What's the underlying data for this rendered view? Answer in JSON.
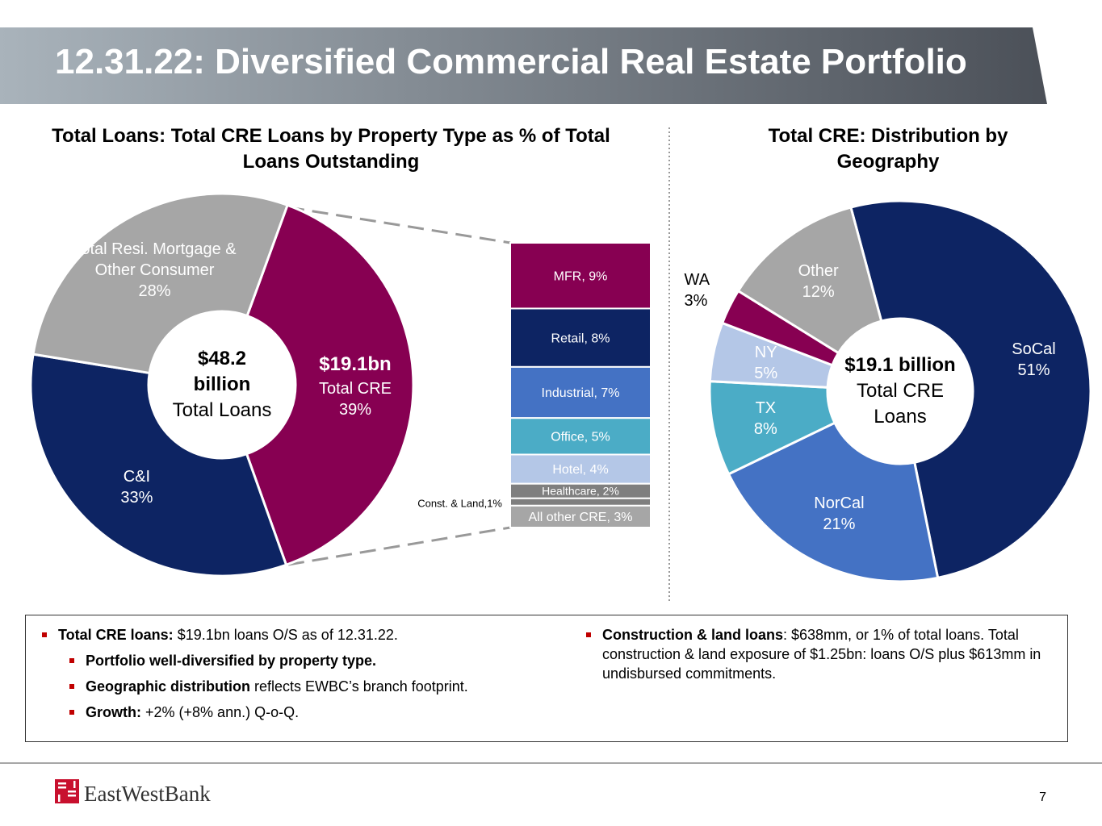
{
  "header": {
    "title": "12.31.22: Diversified Commercial Real Estate Portfolio"
  },
  "chart_data": [
    {
      "type": "donut",
      "title": "Total Loans: Total CRE Loans by Property Type as % of Total Loans Outstanding",
      "center_label": {
        "amount": "$48.2 billion",
        "caption": "Total Loans"
      },
      "categories": [
        "Total CRE",
        "C&I",
        "Total Resi. Mortgage & Other Consumer"
      ],
      "values": [
        39,
        33,
        28
      ],
      "value_labels": [
        "39%",
        "33%",
        "28%"
      ],
      "callouts": [
        "$19.1bn",
        null,
        null
      ],
      "colors": [
        "#870052",
        "#0d2463",
        "#a6a6a6"
      ]
    },
    {
      "type": "stacked-bar",
      "values": [
        9,
        8,
        7,
        5,
        4,
        2,
        1,
        3
      ],
      "value_labels": [
        "MFR, 9%",
        "Retail, 8%",
        "Industrial, 7%",
        "Office, 5%",
        "Hotel, 4%",
        "Healthcare, 2%",
        "Const. & Land,1%",
        "All other CRE, 3%"
      ],
      "colors": [
        "#870052",
        "#0d2463",
        "#4472c4",
        "#4bacc6",
        "#b4c7e7",
        "#7f7f7f",
        "#7f7f7f",
        "#a6a6a6"
      ]
    },
    {
      "type": "donut",
      "title": "Total CRE: Distribution by Geography",
      "center_label": {
        "amount": "$19.1 billion",
        "caption": "Total CRE Loans"
      },
      "categories": [
        "SoCal",
        "NorCal",
        "TX",
        "NY",
        "WA",
        "Other"
      ],
      "values": [
        51,
        21,
        8,
        5,
        3,
        12
      ],
      "value_labels": [
        "51%",
        "21%",
        "8%",
        "5%",
        "3%",
        "12%"
      ],
      "colors": [
        "#0d2463",
        "#4472c4",
        "#4bacc6",
        "#b4c7e7",
        "#870052",
        "#a6a6a6"
      ]
    }
  ],
  "bullets": {
    "left": [
      {
        "bold": "Total CRE loans:",
        "text": " $19.1bn loans O/S as of 12.31.22."
      },
      {
        "bold": "Portfolio well-diversified by property type."
      },
      {
        "bold": "Geographic distribution",
        "text": " reflects EWBC’s branch footprint."
      },
      {
        "bold": "Growth:",
        "text": " +2% (+8% ann.) Q-o-Q."
      }
    ],
    "right": [
      {
        "bold": "Construction & land loans",
        "text": ": $638mm, or 1% of total loans. Total construction & land exposure of $1.25bn: loans O/S plus $613mm in undisbursed commitments."
      }
    ]
  },
  "footer": {
    "logo": "EastWestBank",
    "page": "7"
  }
}
